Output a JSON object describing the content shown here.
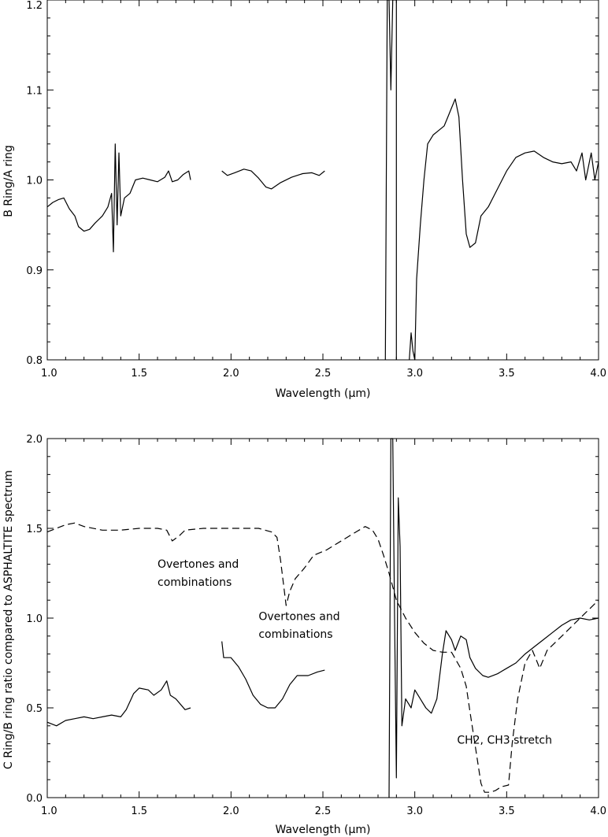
{
  "chart_data": [
    {
      "type": "line",
      "title": "",
      "xlabel": "Wavelength (μm)",
      "ylabel": "B Ring/A ring",
      "xlim": [
        1.0,
        4.0
      ],
      "ylim": [
        0.8,
        1.2
      ],
      "x_ticks": [
        "1.0",
        "1.5",
        "2.0",
        "2.5",
        "3.0",
        "3.5",
        "4.0"
      ],
      "y_ticks": [
        "0.8",
        "0.9",
        "1.0",
        "1.1",
        "1.2"
      ],
      "grid": false,
      "legend": "none",
      "series": [
        {
          "style": "solid",
          "color": "#000000",
          "segments": [
            [
              [
                1.0,
                0.97
              ],
              [
                1.03,
                0.975
              ],
              [
                1.06,
                0.978
              ],
              [
                1.09,
                0.98
              ],
              [
                1.12,
                0.968
              ],
              [
                1.15,
                0.96
              ],
              [
                1.17,
                0.948
              ],
              [
                1.2,
                0.943
              ],
              [
                1.23,
                0.945
              ],
              [
                1.26,
                0.952
              ],
              [
                1.3,
                0.96
              ],
              [
                1.33,
                0.97
              ],
              [
                1.35,
                0.985
              ],
              [
                1.36,
                0.92
              ],
              [
                1.37,
                1.04
              ],
              [
                1.38,
                0.95
              ],
              [
                1.39,
                1.03
              ],
              [
                1.4,
                0.96
              ],
              [
                1.42,
                0.98
              ],
              [
                1.45,
                0.985
              ],
              [
                1.48,
                1.0
              ],
              [
                1.52,
                1.002
              ],
              [
                1.56,
                1.0
              ],
              [
                1.6,
                0.998
              ],
              [
                1.64,
                1.003
              ],
              [
                1.66,
                1.01
              ],
              [
                1.68,
                0.998
              ],
              [
                1.71,
                1.0
              ],
              [
                1.74,
                1.006
              ],
              [
                1.77,
                1.01
              ],
              [
                1.78,
                1.0
              ]
            ],
            [
              [
                1.95,
                1.01
              ],
              [
                1.98,
                1.005
              ],
              [
                2.02,
                1.008
              ],
              [
                2.07,
                1.012
              ],
              [
                2.11,
                1.01
              ],
              [
                2.15,
                1.002
              ],
              [
                2.19,
                0.992
              ],
              [
                2.22,
                0.99
              ],
              [
                2.27,
                0.997
              ],
              [
                2.33,
                1.003
              ],
              [
                2.39,
                1.007
              ],
              [
                2.44,
                1.008
              ],
              [
                2.48,
                1.005
              ],
              [
                2.51,
                1.01
              ]
            ],
            [
              [
                2.84,
                0.8
              ],
              [
                2.85,
                1.2
              ],
              [
                2.86,
                1.2
              ],
              [
                2.87,
                1.1
              ],
              [
                2.88,
                1.2
              ],
              [
                2.9,
                1.2
              ],
              [
                2.9,
                0.8
              ]
            ],
            [
              [
                2.97,
                0.8
              ],
              [
                2.98,
                0.83
              ],
              [
                2.99,
                0.81
              ],
              [
                3.0,
                0.8
              ],
              [
                3.01,
                0.89
              ],
              [
                3.03,
                0.95
              ],
              [
                3.05,
                1.0
              ],
              [
                3.07,
                1.04
              ],
              [
                3.1,
                1.05
              ],
              [
                3.13,
                1.055
              ],
              [
                3.16,
                1.06
              ],
              [
                3.18,
                1.07
              ],
              [
                3.2,
                1.08
              ],
              [
                3.22,
                1.09
              ],
              [
                3.24,
                1.07
              ],
              [
                3.26,
                1.0
              ],
              [
                3.28,
                0.94
              ],
              [
                3.3,
                0.925
              ],
              [
                3.33,
                0.93
              ],
              [
                3.36,
                0.96
              ],
              [
                3.4,
                0.97
              ],
              [
                3.45,
                0.99
              ],
              [
                3.5,
                1.01
              ],
              [
                3.55,
                1.025
              ],
              [
                3.6,
                1.03
              ],
              [
                3.65,
                1.032
              ],
              [
                3.7,
                1.025
              ],
              [
                3.75,
                1.02
              ],
              [
                3.8,
                1.018
              ],
              [
                3.85,
                1.02
              ],
              [
                3.88,
                1.01
              ],
              [
                3.91,
                1.03
              ],
              [
                3.93,
                1.0
              ],
              [
                3.96,
                1.03
              ],
              [
                3.98,
                1.0
              ],
              [
                4.0,
                1.02
              ]
            ]
          ]
        }
      ]
    },
    {
      "type": "line",
      "title": "",
      "xlabel": "Wavelength (μm)",
      "ylabel": "C Ring/B ring ratio compared to ASPHALTITE spectrum",
      "xlim": [
        1.0,
        4.0
      ],
      "ylim": [
        0.0,
        2.0
      ],
      "x_ticks": [
        "1.0",
        "1.5",
        "2.0",
        "2.5",
        "3.0",
        "3.5",
        "4.0"
      ],
      "y_ticks": [
        "0.0",
        "0.5",
        "1.0",
        "1.5",
        "2.0"
      ],
      "grid": false,
      "legend": "none",
      "series": [
        {
          "style": "solid",
          "color": "#000000",
          "segments": [
            [
              [
                1.0,
                0.42
              ],
              [
                1.05,
                0.4
              ],
              [
                1.1,
                0.43
              ],
              [
                1.15,
                0.44
              ],
              [
                1.2,
                0.45
              ],
              [
                1.25,
                0.44
              ],
              [
                1.3,
                0.45
              ],
              [
                1.35,
                0.46
              ],
              [
                1.4,
                0.45
              ],
              [
                1.43,
                0.49
              ],
              [
                1.47,
                0.58
              ],
              [
                1.5,
                0.61
              ],
              [
                1.55,
                0.6
              ],
              [
                1.58,
                0.57
              ],
              [
                1.62,
                0.6
              ],
              [
                1.65,
                0.65
              ],
              [
                1.67,
                0.57
              ],
              [
                1.7,
                0.55
              ],
              [
                1.75,
                0.49
              ],
              [
                1.78,
                0.5
              ]
            ],
            [
              [
                1.95,
                0.87
              ],
              [
                1.96,
                0.78
              ],
              [
                2.0,
                0.78
              ],
              [
                2.04,
                0.73
              ],
              [
                2.08,
                0.66
              ],
              [
                2.12,
                0.57
              ],
              [
                2.16,
                0.52
              ],
              [
                2.2,
                0.5
              ],
              [
                2.24,
                0.5
              ],
              [
                2.28,
                0.55
              ],
              [
                2.32,
                0.63
              ],
              [
                2.36,
                0.68
              ],
              [
                2.42,
                0.68
              ],
              [
                2.47,
                0.7
              ],
              [
                2.51,
                0.71
              ]
            ],
            [
              [
                2.86,
                0.0
              ],
              [
                2.87,
                2.0
              ],
              [
                2.88,
                2.0
              ],
              [
                2.89,
                1.0
              ],
              [
                2.9,
                0.11
              ],
              [
                2.91,
                1.67
              ],
              [
                2.92,
                1.4
              ],
              [
                2.93,
                0.4
              ],
              [
                2.95,
                0.55
              ],
              [
                2.98,
                0.5
              ],
              [
                3.0,
                0.6
              ],
              [
                3.03,
                0.55
              ],
              [
                3.06,
                0.5
              ],
              [
                3.09,
                0.47
              ],
              [
                3.12,
                0.55
              ],
              [
                3.15,
                0.8
              ],
              [
                3.17,
                0.93
              ],
              [
                3.2,
                0.88
              ],
              [
                3.22,
                0.82
              ],
              [
                3.25,
                0.9
              ],
              [
                3.28,
                0.88
              ],
              [
                3.3,
                0.78
              ],
              [
                3.33,
                0.72
              ],
              [
                3.37,
                0.68
              ],
              [
                3.4,
                0.67
              ],
              [
                3.45,
                0.69
              ],
              [
                3.5,
                0.72
              ],
              [
                3.55,
                0.75
              ],
              [
                3.6,
                0.8
              ],
              [
                3.65,
                0.84
              ],
              [
                3.7,
                0.88
              ],
              [
                3.75,
                0.92
              ],
              [
                3.8,
                0.96
              ],
              [
                3.85,
                0.99
              ],
              [
                3.9,
                1.0
              ],
              [
                3.95,
                0.99
              ],
              [
                4.0,
                1.0
              ]
            ]
          ]
        },
        {
          "style": "dashed",
          "color": "#000000",
          "segments": [
            [
              [
                1.0,
                1.48
              ],
              [
                1.05,
                1.5
              ],
              [
                1.1,
                1.52
              ],
              [
                1.15,
                1.53
              ],
              [
                1.2,
                1.51
              ],
              [
                1.3,
                1.49
              ],
              [
                1.4,
                1.49
              ],
              [
                1.5,
                1.5
              ],
              [
                1.6,
                1.5
              ],
              [
                1.65,
                1.49
              ],
              [
                1.68,
                1.43
              ],
              [
                1.72,
                1.46
              ],
              [
                1.75,
                1.49
              ],
              [
                1.85,
                1.5
              ],
              [
                1.95,
                1.5
              ],
              [
                2.05,
                1.5
              ],
              [
                2.15,
                1.5
              ],
              [
                2.22,
                1.48
              ],
              [
                2.25,
                1.45
              ],
              [
                2.27,
                1.32
              ],
              [
                2.3,
                1.07
              ],
              [
                2.32,
                1.15
              ],
              [
                2.35,
                1.22
              ],
              [
                2.4,
                1.28
              ],
              [
                2.45,
                1.35
              ],
              [
                2.52,
                1.38
              ],
              [
                2.6,
                1.43
              ],
              [
                2.68,
                1.48
              ],
              [
                2.73,
                1.51
              ],
              [
                2.77,
                1.49
              ],
              [
                2.8,
                1.44
              ],
              [
                2.83,
                1.35
              ],
              [
                2.86,
                1.25
              ],
              [
                2.9,
                1.1
              ],
              [
                2.95,
                1.0
              ],
              [
                3.0,
                0.92
              ],
              [
                3.05,
                0.86
              ],
              [
                3.1,
                0.82
              ],
              [
                3.15,
                0.81
              ],
              [
                3.2,
                0.81
              ],
              [
                3.25,
                0.72
              ],
              [
                3.28,
                0.62
              ],
              [
                3.3,
                0.48
              ],
              [
                3.33,
                0.28
              ],
              [
                3.36,
                0.08
              ],
              [
                3.38,
                0.03
              ],
              [
                3.41,
                0.03
              ],
              [
                3.44,
                0.04
              ],
              [
                3.47,
                0.06
              ],
              [
                3.51,
                0.07
              ],
              [
                3.53,
                0.3
              ],
              [
                3.56,
                0.55
              ],
              [
                3.6,
                0.75
              ],
              [
                3.64,
                0.82
              ],
              [
                3.66,
                0.77
              ],
              [
                3.68,
                0.72
              ],
              [
                3.72,
                0.82
              ],
              [
                3.78,
                0.88
              ],
              [
                3.85,
                0.95
              ],
              [
                3.92,
                1.02
              ],
              [
                4.0,
                1.1
              ]
            ]
          ]
        }
      ],
      "annotations": [
        {
          "text": "Overtones and",
          "x": 1.6,
          "y": 1.28
        },
        {
          "text": "combinations",
          "x": 1.6,
          "y": 1.18
        },
        {
          "text": "Overtones and",
          "x": 2.15,
          "y": 0.99
        },
        {
          "text": "combinations",
          "x": 2.15,
          "y": 0.89
        },
        {
          "text": "CH2, CH3 stretch",
          "x": 3.23,
          "y": 0.3
        }
      ]
    }
  ]
}
